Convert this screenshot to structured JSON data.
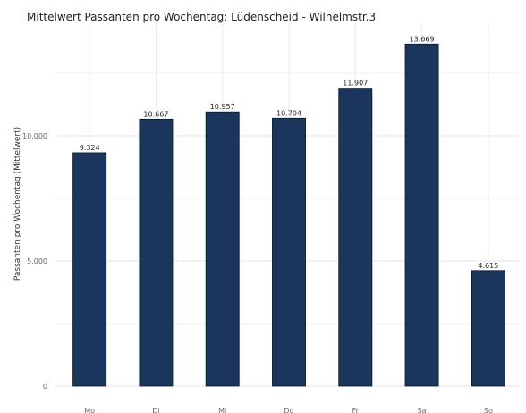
{
  "chart_data": {
    "type": "bar",
    "title": "Mittelwert Passanten pro Wochentag: Lüdenscheid - Wilhelmstr.3",
    "xlabel": "",
    "ylabel": "Passanten pro Wochentag (Mittelwert)",
    "categories": [
      "Mo",
      "Di",
      "Mi",
      "Do",
      "Fr",
      "Sa",
      "So"
    ],
    "values": [
      9324,
      10667,
      10957,
      10704,
      11907,
      13669,
      4615
    ],
    "value_labels": [
      "9.324",
      "10.667",
      "10.957",
      "10.704",
      "11.907",
      "13.669",
      "4.615"
    ],
    "y_ticks": [
      0,
      5000,
      10000
    ],
    "y_tick_labels": [
      "0",
      "5.000",
      "10.000"
    ],
    "ylim": [
      0,
      14500
    ],
    "bar_color": "#1b365d",
    "grid": true
  }
}
